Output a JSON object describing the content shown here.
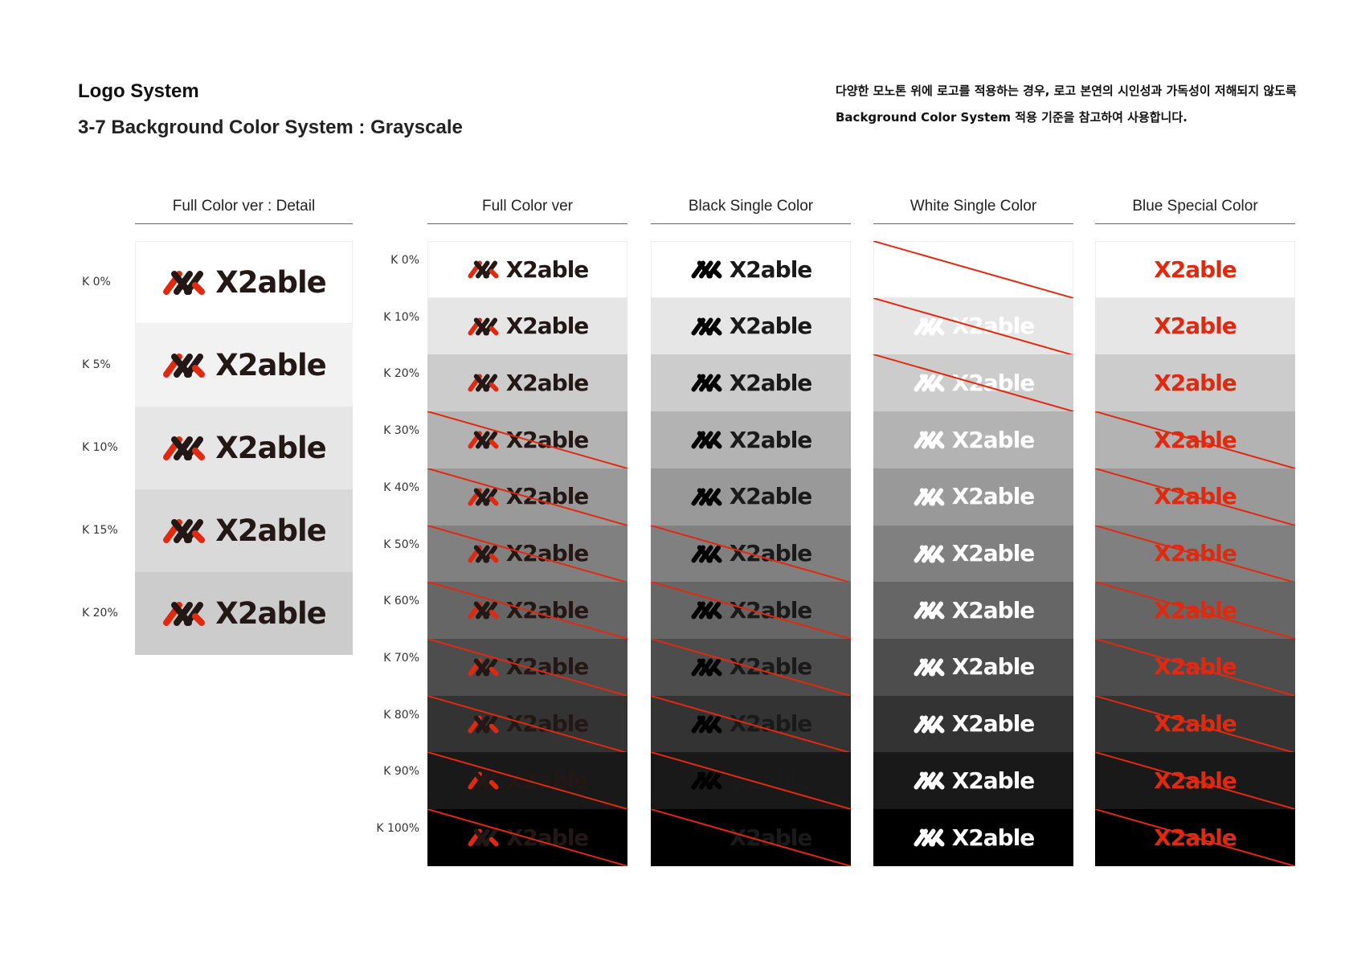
{
  "header": {
    "title": "Logo System",
    "subtitle": "3-7 Background Color System : Grayscale",
    "description_line1": "다양한 모노톤 위에 로고를 적용하는 경우, 로고 본연의 시인성과 가독성이 저해되지 않도록",
    "description_line2": "Background Color System 적용 기준을 참고하여 사용합니다."
  },
  "logo": {
    "wordmark": "X2able",
    "icon": "x2able-stripes-icon"
  },
  "colors": {
    "brand_red": "#e02a10",
    "brand_dark": "#231815",
    "strike_red": "#e02a10"
  },
  "detail_column": {
    "header": "Full Color ver : Detail",
    "rows": [
      {
        "label": "K 0%",
        "k": 0
      },
      {
        "label": "K 5%",
        "k": 5
      },
      {
        "label": "K 10%",
        "k": 10
      },
      {
        "label": "K 15%",
        "k": 15
      },
      {
        "label": "K 20%",
        "k": 20
      }
    ]
  },
  "grid": {
    "row_labels": [
      "K 0%",
      "K 10%",
      "K 20%",
      "K 30%",
      "K 40%",
      "K 50%",
      "K 60%",
      "K 70%",
      "K 80%",
      "K 90%",
      "K 100%"
    ],
    "k_levels": [
      0,
      10,
      20,
      30,
      40,
      50,
      60,
      70,
      80,
      90,
      100
    ],
    "columns": [
      {
        "header": "Full Color ver",
        "variant": "full",
        "not_allowed": [
          30,
          40,
          50,
          60,
          70,
          80,
          90,
          100
        ]
      },
      {
        "header": "Black Single Color",
        "variant": "black",
        "not_allowed": [
          50,
          60,
          70,
          80,
          90,
          100
        ]
      },
      {
        "header": "White Single Color",
        "variant": "white",
        "not_allowed": [
          0,
          10,
          20
        ]
      },
      {
        "header": "Blue Special Color",
        "variant": "special",
        "not_allowed": [
          30,
          40,
          50,
          60,
          70,
          80,
          90,
          100
        ]
      }
    ]
  }
}
